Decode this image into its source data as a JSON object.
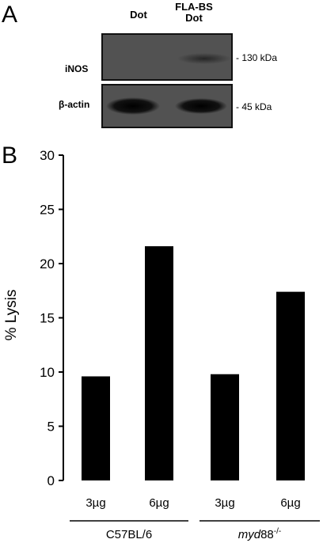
{
  "panel_a": {
    "label": "A",
    "lanes": [
      "Dot",
      "FLA-BS\nDot"
    ],
    "rows": [
      {
        "name": "iNOS",
        "marker": "- 130 kDa"
      },
      {
        "name": "β-actin",
        "marker": "- 45 kDa"
      }
    ]
  },
  "panel_b": {
    "label": "B"
  },
  "chart_data": {
    "type": "bar",
    "categories": [
      "3µg",
      "6µg",
      "3µg",
      "6µg"
    ],
    "groups": [
      "C57BL/6",
      "myd88-/-"
    ],
    "group_of_category": [
      0,
      0,
      1,
      1
    ],
    "values": [
      9.6,
      21.6,
      9.8,
      17.4
    ],
    "ylabel": "% Lysis",
    "ylim": [
      0,
      30
    ],
    "yticks": [
      0,
      5,
      10,
      15,
      20,
      25,
      30
    ],
    "grid": false,
    "bar_color": "#000000"
  }
}
